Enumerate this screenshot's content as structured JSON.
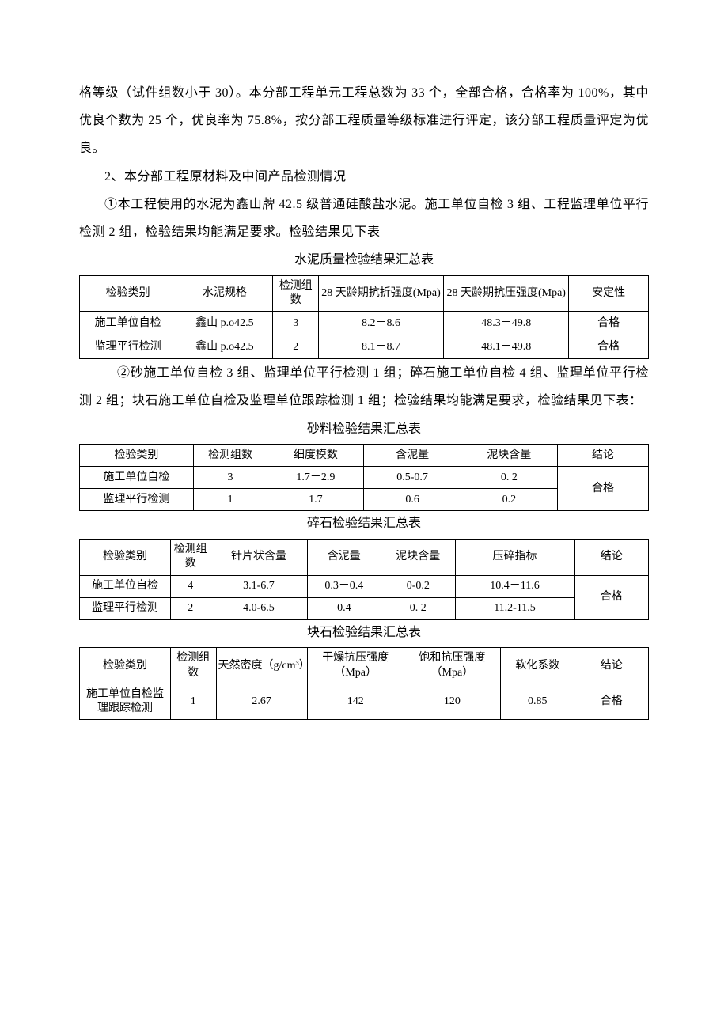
{
  "para1": "格等级（试件组数小于 30）。本分部工程单元工程总数为 33 个，全部合格，合格率为 100%，其中优良个数为 25 个，优良率为 75.8%，按分部工程质量等级标准进行评定，该分部工程质量评定为优良。",
  "para2": "2、本分部工程原材料及中间产品检测情况",
  "para3": "①本工程使用的水泥为鑫山牌 42.5 级普通硅酸盐水泥。施工单位自检 3 组、工程监理单位平行检测 2 组，检验结果均能满足要求。检验结果见下表",
  "table1": {
    "title": "水泥质量检验结果汇总表",
    "headers": [
      "检验类别",
      "水泥规格",
      "检测组数",
      "28 天龄期抗折强度(Mpa)",
      "28 天龄期抗压强度(Mpa)",
      "安定性"
    ],
    "rows": [
      [
        "施工单位自检",
        "鑫山 p.o42.5",
        "3",
        "8.2－8.6",
        "48.3－49.8",
        "合格"
      ],
      [
        "监理平行检测",
        "鑫山 p.o42.5",
        "2",
        "8.1－8.7",
        "48.1－49.8",
        "合格"
      ]
    ],
    "widths": [
      "17%",
      "17%",
      "8%",
      "22%",
      "22%",
      "14%"
    ]
  },
  "para4": "②砂施工单位自检 3 组、监理单位平行检测 1 组；碎石施工单位自检 4 组、监理单位平行检测 2 组；块石施工单位自检及监理单位跟踪检测 1 组；检验结果均能满足要求，检验结果见下表：",
  "table2": {
    "title": "砂料检验结果汇总表",
    "headers": [
      "检验类别",
      "检测组数",
      "细度模数",
      "含泥量",
      "泥块含量",
      "结论"
    ],
    "rows": [
      [
        "施工单位自检",
        "3",
        "1.7－2.9",
        "0.5-0.7",
        "0. 2"
      ],
      [
        "监理平行检测",
        "1",
        "1.7",
        "0.6",
        "0.2"
      ]
    ],
    "merged_conclusion": "合格",
    "widths": [
      "20%",
      "13%",
      "17%",
      "17%",
      "17%",
      "16%"
    ]
  },
  "table3": {
    "title": "碎石检验结果汇总表",
    "headers": [
      "检验类别",
      "检测组数",
      "针片状含量",
      "含泥量",
      "泥块含量",
      "压碎指标",
      "结论"
    ],
    "rows": [
      [
        "施工单位自检",
        "4",
        "3.1-6.7",
        "0.3－0.4",
        "0-0.2",
        "10.4－11.6"
      ],
      [
        "监理平行检测",
        "2",
        "4.0-6.5",
        "0.4",
        "0. 2",
        "11.2-11.5"
      ]
    ],
    "merged_conclusion": "合格",
    "widths": [
      "16%",
      "7%",
      "17%",
      "13%",
      "13%",
      "21%",
      "13%"
    ]
  },
  "table4": {
    "title": "块石检验结果汇总表",
    "headers": [
      "检验类别",
      "检测组数",
      "天然密度（g/cm³）",
      "干燥抗压强度（Mpa）",
      "饱和抗压强度（Mpa）",
      "软化系数",
      "结论"
    ],
    "rows": [
      [
        "施工单位自检监理跟踪检测",
        "1",
        "2.67",
        "142",
        "120",
        "0.85",
        "合格"
      ]
    ],
    "widths": [
      "16%",
      "8%",
      "16%",
      "17%",
      "17%",
      "13%",
      "13%"
    ]
  }
}
